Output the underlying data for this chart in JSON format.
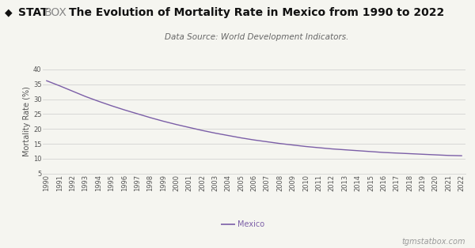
{
  "years": [
    1990,
    1991,
    1992,
    1993,
    1994,
    1995,
    1996,
    1997,
    1998,
    1999,
    2000,
    2001,
    2002,
    2003,
    2004,
    2005,
    2006,
    2007,
    2008,
    2009,
    2010,
    2011,
    2012,
    2013,
    2014,
    2015,
    2016,
    2017,
    2018,
    2019,
    2020,
    2021,
    2022
  ],
  "mortality": [
    36.2,
    34.5,
    32.7,
    30.9,
    29.3,
    27.8,
    26.4,
    25.1,
    23.8,
    22.6,
    21.5,
    20.5,
    19.5,
    18.6,
    17.8,
    17.0,
    16.3,
    15.7,
    15.1,
    14.6,
    14.1,
    13.7,
    13.3,
    13.0,
    12.7,
    12.4,
    12.1,
    11.9,
    11.7,
    11.5,
    11.3,
    11.1,
    11.0
  ],
  "line_color": "#7B5EA7",
  "title": "The Evolution of Mortality Rate in Mexico from 1990 to 2022",
  "subtitle": "Data Source: World Development Indicators.",
  "ylabel": "Mortality Rate (%)",
  "ylim": [
    5,
    40
  ],
  "yticks": [
    5,
    10,
    15,
    20,
    25,
    30,
    35,
    40
  ],
  "legend_label": "Mexico",
  "watermark": "tgmstatbox.com",
  "bg_color": "#f5f5f0",
  "title_fontsize": 10,
  "subtitle_fontsize": 7.5,
  "ylabel_fontsize": 7,
  "tick_fontsize": 6,
  "legend_fontsize": 7,
  "watermark_fontsize": 7,
  "logo_stat_color": "#111111",
  "logo_box_color": "#888888",
  "grid_color": "#cccccc",
  "spine_color": "#cccccc",
  "tick_color": "#555555",
  "ylabel_color": "#555555",
  "subtitle_color": "#666666",
  "title_color": "#111111",
  "watermark_color": "#999999"
}
